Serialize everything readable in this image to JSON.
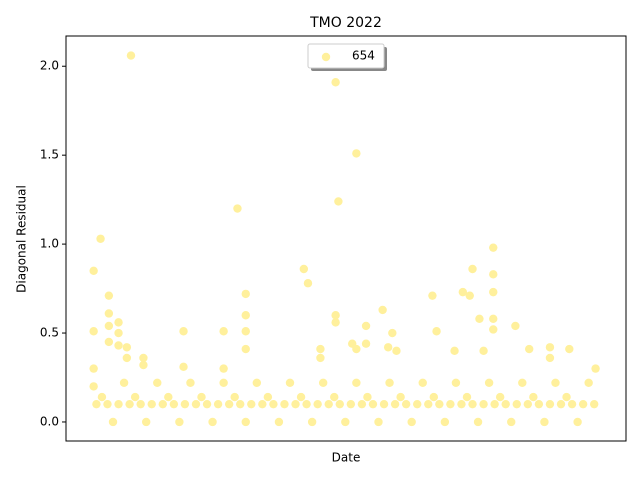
{
  "chart_data": {
    "type": "scatter",
    "title": "TMO 2022",
    "x_label": "Date",
    "y_label": "Diagonal Residual",
    "series": [
      {
        "name": "654",
        "color": "#fff09c",
        "x": [
          0,
          0,
          0,
          0,
          5,
          11,
          11,
          11,
          11,
          18,
          18,
          18,
          24,
          24,
          27,
          36,
          36,
          65,
          65,
          94,
          94,
          104,
          110,
          110,
          110,
          110,
          152,
          155,
          164,
          164,
          175,
          175,
          175,
          177,
          187,
          190,
          190,
          197,
          197,
          209,
          213,
          216,
          219,
          245,
          248,
          261,
          267,
          272,
          274,
          279,
          282,
          289,
          289,
          289,
          289,
          289,
          305,
          315,
          330,
          330,
          344,
          363,
          2,
          10,
          18,
          26,
          34,
          42,
          50,
          58,
          66,
          74,
          82,
          90,
          98,
          106,
          114,
          122,
          130,
          138,
          146,
          154,
          162,
          170,
          178,
          186,
          194,
          202,
          210,
          218,
          226,
          234,
          242,
          250,
          258,
          266,
          274,
          282,
          290,
          298,
          306,
          314,
          322,
          330,
          338,
          346,
          354,
          362,
          6,
          14,
          22,
          30,
          38,
          46,
          54,
          62,
          70,
          78,
          86,
          94,
          102,
          110,
          118,
          126,
          134,
          142,
          150,
          158,
          166,
          174,
          182,
          190,
          198,
          206,
          214,
          222,
          230,
          238,
          246,
          254,
          262,
          270,
          278,
          286,
          294,
          302,
          310,
          318,
          326,
          334,
          342,
          350,
          358
        ],
        "values": [
          0.85,
          0.51,
          0.3,
          0.2,
          1.03,
          0.71,
          0.61,
          0.54,
          0.45,
          0.56,
          0.5,
          0.43,
          0.36,
          0.42,
          2.06,
          0.36,
          0.32,
          0.51,
          0.31,
          0.51,
          0.3,
          1.2,
          0.72,
          0.6,
          0.51,
          0.41,
          0.86,
          0.78,
          0.41,
          0.36,
          1.91,
          0.6,
          0.56,
          1.24,
          0.44,
          1.51,
          0.41,
          0.54,
          0.44,
          0.63,
          0.42,
          0.5,
          0.4,
          0.71,
          0.51,
          0.4,
          0.73,
          0.71,
          0.86,
          0.58,
          0.4,
          0.98,
          0.83,
          0.73,
          0.58,
          0.52,
          0.54,
          0.41,
          0.42,
          0.36,
          0.41,
          0.3,
          0.1,
          0.1,
          0.1,
          0.1,
          0.1,
          0.1,
          0.1,
          0.1,
          0.1,
          0.1,
          0.1,
          0.1,
          0.1,
          0.1,
          0.1,
          0.1,
          0.1,
          0.1,
          0.1,
          0.1,
          0.1,
          0.1,
          0.1,
          0.1,
          0.1,
          0.1,
          0.1,
          0.1,
          0.1,
          0.1,
          0.1,
          0.1,
          0.1,
          0.1,
          0.1,
          0.1,
          0.1,
          0.1,
          0.1,
          0.1,
          0.1,
          0.1,
          0.1,
          0.1,
          0.1,
          0.1,
          0.14,
          0,
          0.22,
          0.14,
          0,
          0.22,
          0.14,
          0,
          0.22,
          0.14,
          0,
          0.22,
          0.14,
          0,
          0.22,
          0.14,
          0,
          0.22,
          0.14,
          0,
          0.22,
          0.14,
          0,
          0.22,
          0.14,
          0,
          0.22,
          0.14,
          0,
          0.22,
          0.14,
          0,
          0.22,
          0.14,
          0,
          0.22,
          0.14,
          0,
          0.22,
          0.14,
          0,
          0.22,
          0.14,
          0,
          0.22
        ]
      }
    ],
    "xlim": [
      -20,
      385
    ],
    "ylim": [
      -0.107,
      2.17
    ],
    "yticks": [
      {
        "value": 0,
        "label": "0.0"
      },
      {
        "value": 0.5,
        "label": "0.5"
      },
      {
        "value": 1,
        "label": "1.0"
      },
      {
        "value": 1.5,
        "label": "1.5"
      },
      {
        "value": 2,
        "label": "2.0"
      }
    ],
    "legend": "upper center"
  }
}
